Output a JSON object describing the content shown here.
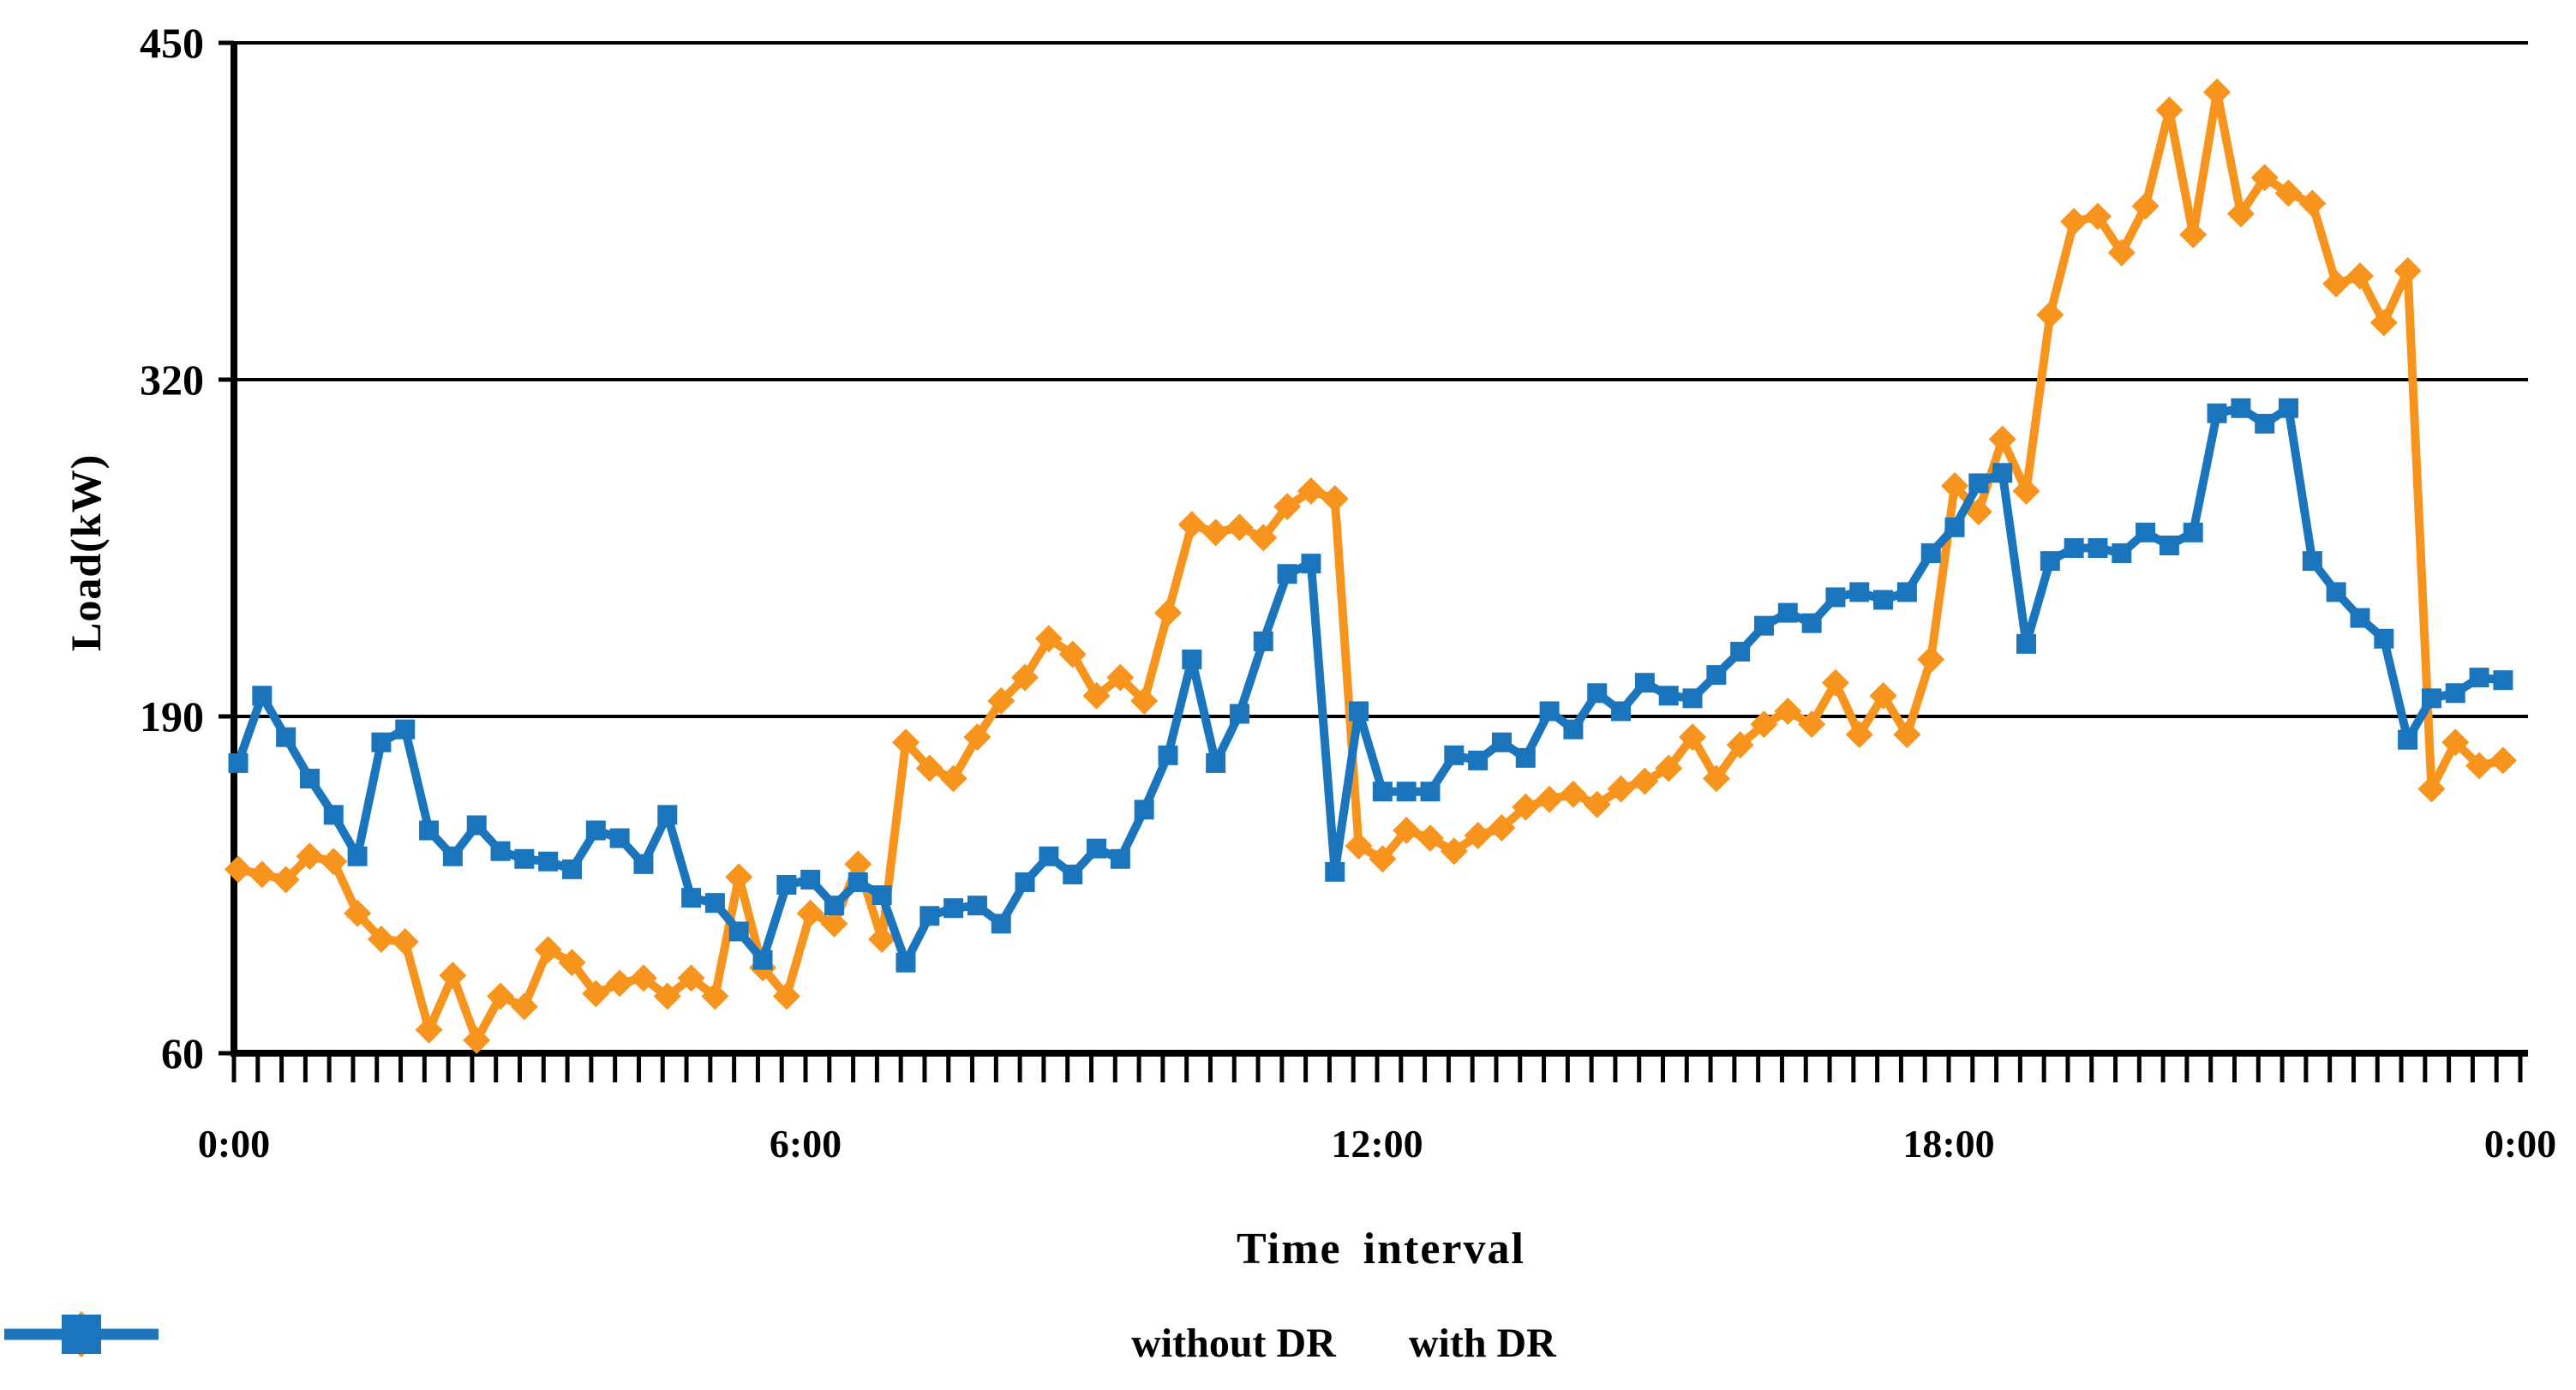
{
  "chart_data": {
    "type": "line",
    "title": "",
    "xlabel": "Time interval",
    "ylabel": "Load(kW)",
    "ylim": [
      60,
      450
    ],
    "y_gridlines": [
      450,
      320,
      190
    ],
    "yticks": [
      450,
      320,
      190,
      60
    ],
    "yticklabels": [
      "450",
      "320",
      "190",
      "60"
    ],
    "x_tick_count": 97,
    "x_major_tick_indices": [
      0,
      24,
      48,
      72,
      96
    ],
    "xticklabels": [
      "0:00",
      "6:00",
      "12:00",
      "18:00",
      "0:00"
    ],
    "x_step_minutes": 15,
    "grid": "horizontal",
    "legend_position": "bottom",
    "series": [
      {
        "name": "without DR",
        "color": "#F7941E",
        "marker": "diamond",
        "values": [
          131,
          129,
          127,
          136,
          134,
          114,
          104,
          103,
          69,
          90,
          65,
          82,
          78,
          100,
          95,
          83,
          87,
          89,
          82,
          89,
          82,
          128,
          93,
          82,
          114,
          110,
          133,
          104,
          180,
          170,
          166,
          182,
          196,
          205,
          220,
          214,
          198,
          205,
          196,
          230,
          264,
          261,
          263,
          259,
          271,
          277,
          274,
          140,
          135,
          146,
          143,
          138,
          144,
          147,
          155,
          158,
          160,
          156,
          162,
          165,
          170,
          182,
          166,
          179,
          187,
          192,
          187,
          203,
          183,
          198,
          183,
          212,
          279,
          269,
          297,
          277,
          345,
          381,
          383,
          369,
          387,
          424,
          376,
          431,
          384,
          398,
          392,
          388,
          357,
          360,
          342,
          362,
          162,
          180,
          171,
          173
        ]
      },
      {
        "name": "with DR",
        "color": "#1B75BC",
        "marker": "square",
        "values": [
          172,
          198,
          182,
          166,
          152,
          136,
          180,
          185,
          146,
          136,
          148,
          138,
          135,
          134,
          131,
          146,
          143,
          133,
          152,
          120,
          118,
          107,
          96,
          125,
          127,
          117,
          126,
          121,
          95,
          113,
          116,
          117,
          110,
          126,
          136,
          129,
          139,
          135,
          154,
          175,
          212,
          172,
          191,
          219,
          245,
          249,
          130,
          192,
          161,
          161,
          161,
          175,
          173,
          180,
          174,
          192,
          185,
          199,
          192,
          203,
          198,
          197,
          206,
          215,
          225,
          230,
          226,
          236,
          238,
          235,
          238,
          253,
          263,
          280,
          284,
          218,
          250,
          255,
          255,
          253,
          261,
          256,
          261,
          307,
          309,
          303,
          309,
          250,
          238,
          228,
          220,
          181,
          197,
          199,
          205,
          204
        ]
      }
    ]
  }
}
